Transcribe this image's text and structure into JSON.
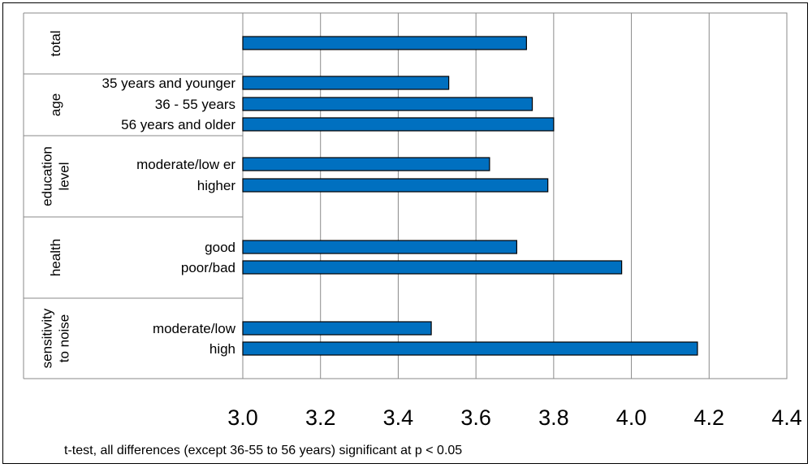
{
  "chart_data": {
    "type": "bar",
    "orientation": "horizontal",
    "groups": [
      {
        "name": "total",
        "lines": [
          "total"
        ],
        "items": [
          {
            "label": "",
            "value": 3.73
          }
        ]
      },
      {
        "name": "age",
        "lines": [
          "age"
        ],
        "items": [
          {
            "label": "35 years and younger",
            "value": 3.53
          },
          {
            "label": "36 - 55 years",
            "value": 3.745
          },
          {
            "label": "56 years and older",
            "value": 3.8
          }
        ]
      },
      {
        "name": "education level",
        "lines": [
          "education",
          "level"
        ],
        "items": [
          {
            "label": "moderate/low er",
            "value": 3.635
          },
          {
            "label": "higher",
            "value": 3.785
          }
        ]
      },
      {
        "name": "health",
        "lines": [
          "health"
        ],
        "items": [
          {
            "label": "good",
            "value": 3.705
          },
          {
            "label": "poor/bad",
            "value": 3.975
          }
        ]
      },
      {
        "name": "sensitivity to noise",
        "lines": [
          "sensitivity",
          "to noise"
        ],
        "items": [
          {
            "label": "moderate/low",
            "value": 3.485
          },
          {
            "label": "high",
            "value": 4.17
          }
        ]
      }
    ],
    "xlim": [
      3.0,
      4.4
    ],
    "xticks": [
      "3.0",
      "3.2",
      "3.4",
      "3.6",
      "3.8",
      "4.0",
      "4.2",
      "4.4"
    ],
    "grid": true,
    "bar_color": "#0070C0",
    "footnote": "t-test, all differences (except 36-55 to 56 years) significant at p < 0.05"
  }
}
